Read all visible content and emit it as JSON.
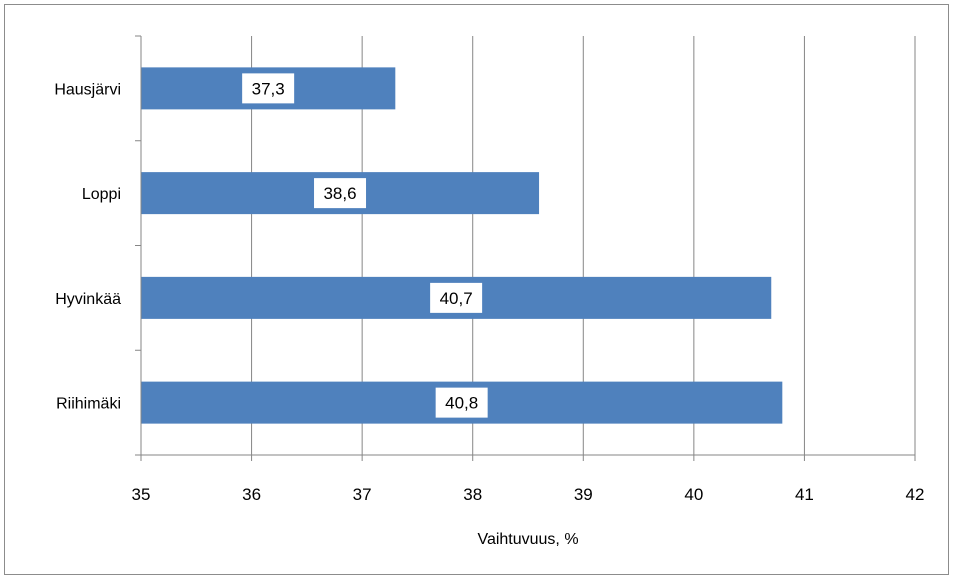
{
  "chart_data": {
    "type": "bar",
    "orientation": "horizontal",
    "categories": [
      "Hausjärvi",
      "Loppi",
      "Hyvinkää",
      "Riihimäki"
    ],
    "values": [
      37.3,
      38.6,
      40.7,
      40.8
    ],
    "value_labels": [
      "37,3",
      "38,6",
      "40,7",
      "40,8"
    ],
    "xlabel": "Vaihtuvuus, %",
    "xlim": [
      35,
      42
    ],
    "x_ticks": [
      35,
      36,
      37,
      38,
      39,
      40,
      41,
      42
    ],
    "grid": "vertical",
    "legend": "none",
    "bar_color": "#4f81bd",
    "grid_color": "#868686"
  }
}
